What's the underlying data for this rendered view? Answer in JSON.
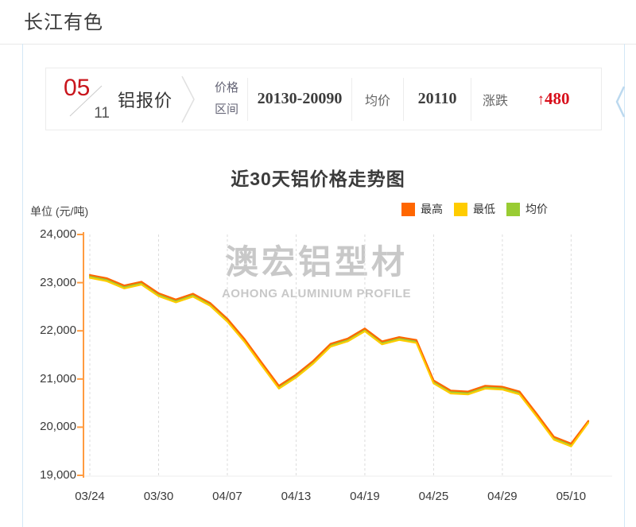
{
  "page": {
    "title": "长江有色"
  },
  "quote_bar": {
    "month": "05",
    "day": "11",
    "product": "铝报价",
    "range_label_line1": "价格",
    "range_label_line2": "区间",
    "range_value": "20130-20090",
    "avg_label": "均价",
    "avg_value": "20110",
    "change_label": "涨跌",
    "change_arrow": "↑",
    "change_value": "480"
  },
  "watermark": {
    "line1": "澳宏铝型材",
    "line2": "AOHONG ALUMINIUM PROFILE"
  },
  "colors": {
    "accent_red": "#c9161d",
    "change_red": "#d8101c",
    "axis_orange": "#ff9b40",
    "grid_gray": "#dcdcdc",
    "panel_border_blue": "#d3e7f6",
    "carousel_arrow_blue": "#bcd9ef",
    "watermark_gray": "#c8c8c8"
  },
  "chart_data": {
    "type": "line",
    "title": "近30天铝价格走势图",
    "unit_label": "单位 (元/吨)",
    "ylim": [
      19000,
      24000
    ],
    "ytick_step": 1000,
    "ytick_labels": [
      "19,000",
      "20,000",
      "21,000",
      "22,000",
      "23,000",
      "24,000"
    ],
    "x_labels": [
      "03/24",
      "03/30",
      "04/07",
      "04/13",
      "04/19",
      "04/25",
      "04/29",
      "05/10"
    ],
    "x_label_indices": [
      0,
      4,
      8,
      12,
      16,
      20,
      24,
      28
    ],
    "n_points": 30,
    "grid": "vertical dashed gridlines at x labels, light horizontal base line",
    "legend_position": "top-right",
    "series": [
      {
        "name": "最高",
        "color": "#ff6600",
        "values": [
          23160,
          23090,
          22940,
          23020,
          22780,
          22650,
          22770,
          22580,
          22250,
          21830,
          21340,
          20860,
          21090,
          21380,
          21730,
          21840,
          22050,
          21780,
          21870,
          21810,
          20970,
          20760,
          20740,
          20860,
          20840,
          20740,
          20280,
          19800,
          19660,
          20130
        ]
      },
      {
        "name": "最低",
        "color": "#ffcc00",
        "values": [
          23100,
          23030,
          22880,
          22960,
          22720,
          22590,
          22710,
          22520,
          22190,
          21770,
          21280,
          20800,
          21030,
          21320,
          21670,
          21780,
          21990,
          21720,
          21810,
          21750,
          20910,
          20700,
          20680,
          20800,
          20780,
          20680,
          20220,
          19740,
          19600,
          20090
        ]
      },
      {
        "name": "均价",
        "color": "#99cc33",
        "values": [
          23130,
          23060,
          22910,
          22990,
          22750,
          22620,
          22740,
          22550,
          22220,
          21800,
          21310,
          20830,
          21060,
          21350,
          21700,
          21810,
          22020,
          21750,
          21840,
          21780,
          20940,
          20730,
          20710,
          20830,
          20810,
          20710,
          20250,
          19770,
          19630,
          20110
        ]
      }
    ]
  }
}
